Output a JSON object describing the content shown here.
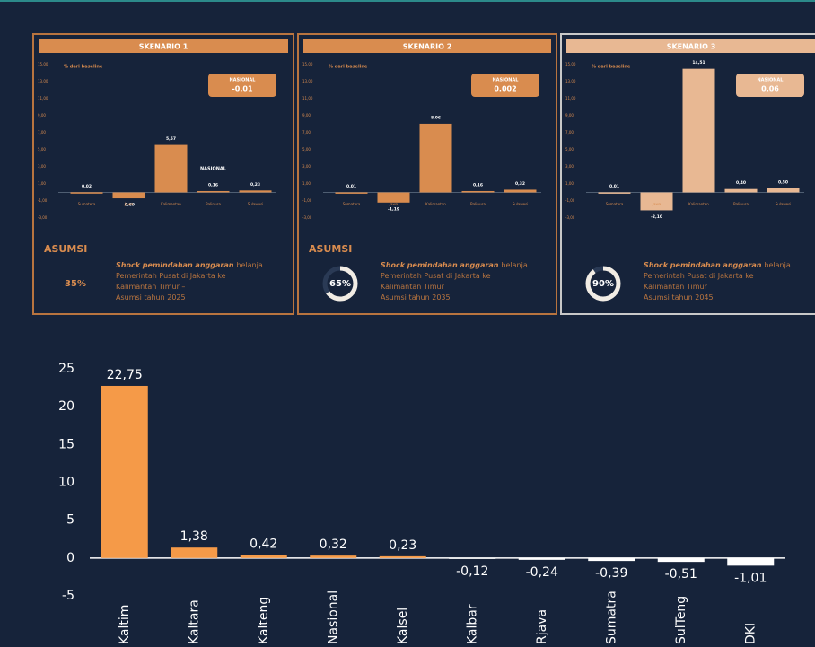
{
  "chart_data": [
    {
      "type": "bar",
      "title": "SKENARIO 1",
      "y_label": "% dari baseline",
      "categories": [
        "Sumatera",
        "Jawa",
        "Kalimantan",
        "Balinusa",
        "Sulawesi"
      ],
      "values": [
        0.02,
        -0.69,
        5.57,
        0.16,
        0.23
      ],
      "value_labels": [
        "0,02",
        "-0,69",
        "5,57",
        "0,16",
        "0,23"
      ],
      "color": "#d98c4f",
      "ylim": [
        -3,
        15
      ],
      "yticks": [
        {
          "value": 15,
          "label": "15,00"
        },
        {
          "value": 13,
          "label": "13,00"
        },
        {
          "value": 11,
          "label": "11,00"
        },
        {
          "value": 9,
          "label": "9,00"
        },
        {
          "value": 7,
          "label": "7,00"
        },
        {
          "value": 5,
          "label": "5,00"
        },
        {
          "value": 3,
          "label": "3,00"
        },
        {
          "value": 1,
          "label": "1,00"
        },
        {
          "value": -1,
          "label": "-1,00"
        },
        {
          "value": -3,
          "label": "-3,00"
        }
      ],
      "badge_label": "NASIONAL",
      "badge_value": -0.01,
      "annotation": "NASIONAL",
      "assumption_heading": "ASUMSI",
      "assumption": {
        "value": 35,
        "label": "35%"
      },
      "gauge": false,
      "note_emphasis": "Shock pemindahan anggaran",
      "note_lines": [
        "belanja",
        "Pemerintah Pusat di Jakarta ke",
        "Kalimantan Timur –",
        "Asumsi tahun 2025"
      ]
    },
    {
      "type": "bar",
      "title": "SKENARIO 2",
      "y_label": "% dari baseline",
      "categories": [
        "Sumatera",
        "Jawa",
        "Kalimantan",
        "Balinusa",
        "Sulawesi"
      ],
      "values": [
        0.01,
        -1.19,
        8.06,
        0.16,
        0.32
      ],
      "value_labels": [
        "0,01",
        "-1,19",
        "8,06",
        "0,16",
        "0,32"
      ],
      "color": "#d98c4f",
      "ylim": [
        -3,
        15
      ],
      "yticks": [
        {
          "value": 15,
          "label": "15,00"
        },
        {
          "value": 13,
          "label": "13,00"
        },
        {
          "value": 11,
          "label": "11,00"
        },
        {
          "value": 9,
          "label": "9,00"
        },
        {
          "value": 7,
          "label": "7,00"
        },
        {
          "value": 5,
          "label": "5,00"
        },
        {
          "value": 3,
          "label": "3,00"
        },
        {
          "value": 1,
          "label": "1,00"
        },
        {
          "value": -1,
          "label": "-1,00"
        },
        {
          "value": -3,
          "label": "-3,00"
        }
      ],
      "badge_label": "NASIONAL",
      "badge_value": 0.002,
      "assumption_heading": "ASUMSI",
      "assumption": {
        "value": 65,
        "label": "65%"
      },
      "gauge": true,
      "note_emphasis": "Shock pemindahan anggaran",
      "note_lines": [
        "belanja",
        "Pemerintah Pusat di Jakarta ke",
        "Kalimantan Timur",
        "Asumsi tahun 2035"
      ]
    },
    {
      "type": "bar",
      "title": "SKENARIO 3",
      "y_label": "% dari baseline",
      "categories": [
        "Sumatera",
        "Jawa",
        "Kalimantan",
        "Balinusa",
        "Sulawesi"
      ],
      "values": [
        0.01,
        -2.1,
        14.51,
        0.4,
        0.5
      ],
      "value_labels": [
        "0,01",
        "-2,10",
        "14,51",
        "0,40",
        "0,50"
      ],
      "color": "#e8b893",
      "ylim": [
        -3,
        15
      ],
      "yticks": [
        {
          "value": 15,
          "label": "15,00"
        },
        {
          "value": 13,
          "label": "13,00"
        },
        {
          "value": 11,
          "label": "11,00"
        },
        {
          "value": 9,
          "label": "9,00"
        },
        {
          "value": 7,
          "label": "7,00"
        },
        {
          "value": 5,
          "label": "5,00"
        },
        {
          "value": 3,
          "label": "3,00"
        },
        {
          "value": 1,
          "label": "1,00"
        },
        {
          "value": -1,
          "label": "-1,00"
        },
        {
          "value": -3,
          "label": "-3,00"
        }
      ],
      "badge_label": "NASIONAL",
      "badge_value": 0.06,
      "assumption": {
        "value": 90,
        "label": "90%"
      },
      "gauge": true,
      "note_emphasis": "Shock pemindahan anggaran",
      "note_lines": [
        "belanja",
        "Pemerintah Pusat di Jakarta ke",
        "Kalimantan Timur",
        "Asumsi tahun 2045"
      ]
    },
    {
      "type": "bar",
      "categories": [
        "Kaltim",
        "Kaltara",
        "Kalteng",
        "Nasional",
        "Kalsel",
        "Kalbar",
        "Rjava",
        "Sumatra",
        "SulTeng",
        "DKI"
      ],
      "values": [
        22.75,
        1.38,
        0.42,
        0.32,
        0.23,
        -0.12,
        -0.24,
        -0.39,
        -0.51,
        -1.01
      ],
      "value_labels": [
        "22,75",
        "1,38",
        "0,42",
        "0,32",
        "0,23",
        "-0,12",
        "-0,24",
        "-0,39",
        "-0,51",
        "-1,01"
      ],
      "color": "#f59a48",
      "negative_color": "#ffffff",
      "ylim": [
        -5,
        25
      ],
      "yticks": [
        25,
        20,
        15,
        10,
        5,
        0,
        -5
      ]
    }
  ]
}
